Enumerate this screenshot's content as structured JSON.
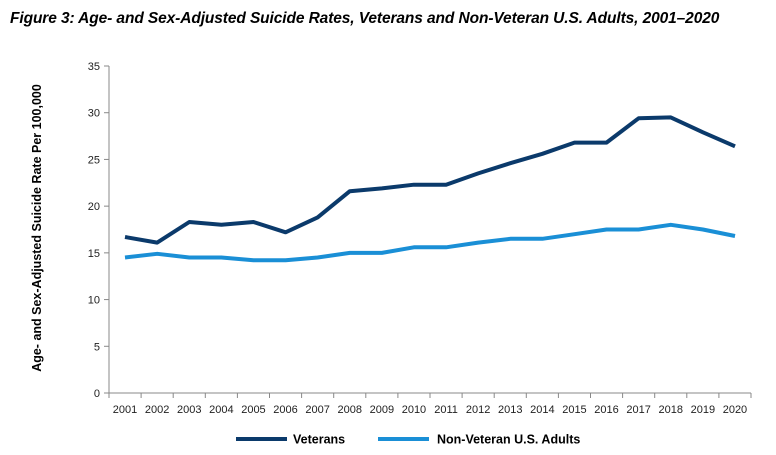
{
  "chart_data": {
    "type": "line",
    "title": "Figure 3: Age- and Sex-Adjusted Suicide Rates, Veterans and Non-Veteran U.S. Adults, 2001–2020",
    "xlabel": "",
    "ylabel": "Age- and Sex-Adjusted Suicide Rate Per 100,000",
    "ylim": [
      0,
      35
    ],
    "yticks": [
      0,
      5,
      10,
      15,
      20,
      25,
      30,
      35
    ],
    "grid": false,
    "legend_position": "bottom",
    "categories": [
      "2001",
      "2002",
      "2003",
      "2004",
      "2005",
      "2006",
      "2007",
      "2008",
      "2009",
      "2010",
      "2011",
      "2012",
      "2013",
      "2014",
      "2015",
      "2016",
      "2017",
      "2018",
      "2019",
      "2020"
    ],
    "series": [
      {
        "name": "Veterans",
        "color": "#0b3a6b",
        "values": [
          16.7,
          16.1,
          18.3,
          18.0,
          18.3,
          17.2,
          18.8,
          21.6,
          21.9,
          22.3,
          22.3,
          23.5,
          24.6,
          25.6,
          26.8,
          26.8,
          29.4,
          29.5,
          27.9,
          26.4
        ]
      },
      {
        "name": "Non-Veteran U.S. Adults",
        "color": "#1a8fd6",
        "values": [
          14.5,
          14.9,
          14.5,
          14.5,
          14.2,
          14.2,
          14.5,
          15.0,
          15.0,
          15.6,
          15.6,
          16.1,
          16.5,
          16.5,
          17.0,
          17.5,
          17.5,
          18.0,
          17.5,
          16.8
        ]
      }
    ]
  }
}
